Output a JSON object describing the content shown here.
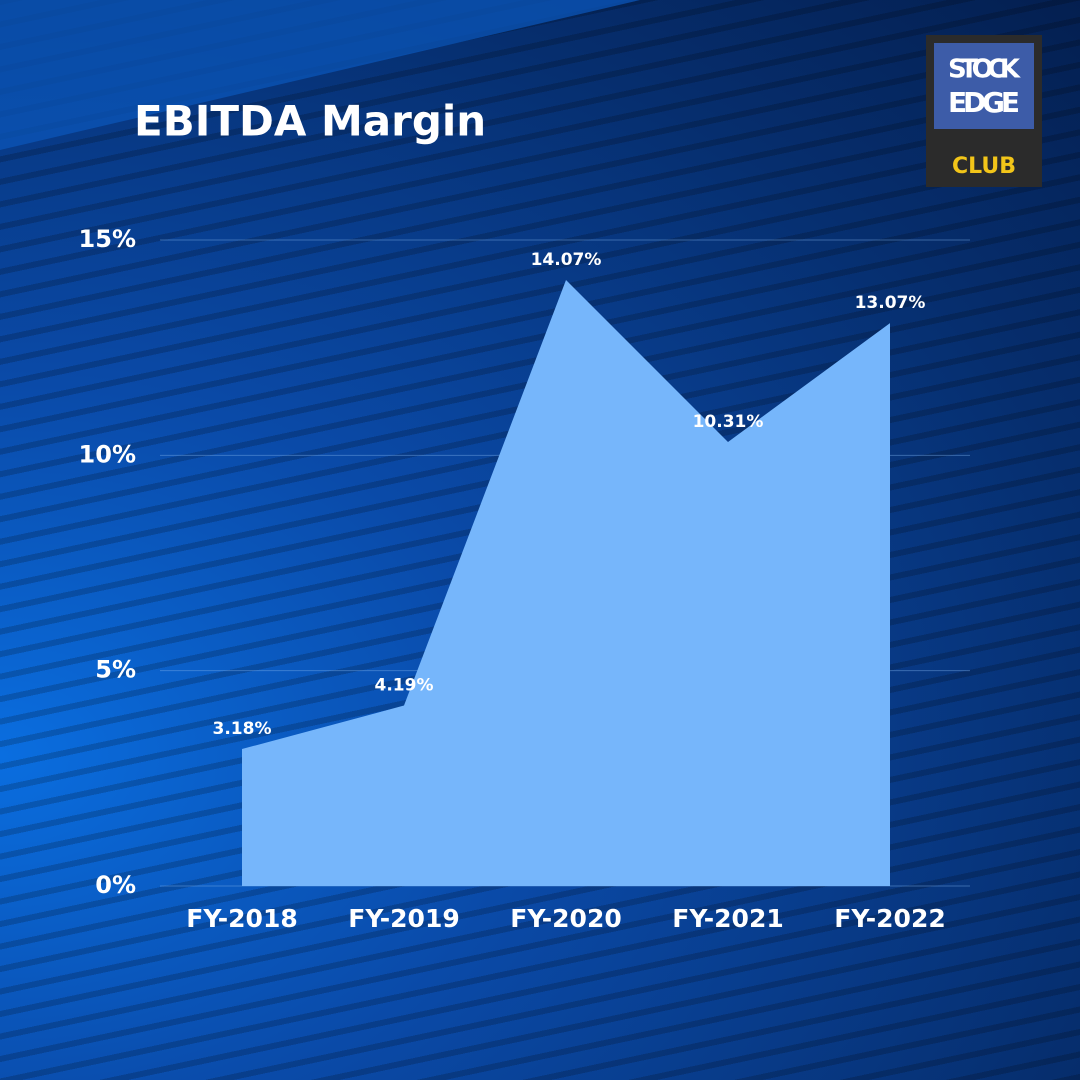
{
  "chart_data": {
    "type": "area",
    "title": "EBITDA Margin",
    "categories": [
      "FY-2018",
      "FY-2019",
      "FY-2020",
      "FY-2021",
      "FY-2022"
    ],
    "values": [
      3.18,
      4.19,
      14.07,
      10.31,
      13.07
    ],
    "value_labels": [
      "3.18%",
      "4.19%",
      "14.07%",
      "10.31%",
      "13.07%"
    ],
    "color": "#76b6fb",
    "ylim": [
      0,
      15
    ],
    "yticks": [
      {
        "value": 0,
        "label": "0%"
      },
      {
        "value": 5,
        "label": "5%"
      },
      {
        "value": 10,
        "label": "10%"
      },
      {
        "value": 15,
        "label": "15%"
      }
    ],
    "grid": true
  },
  "logo": {
    "line1": "STOCK",
    "line2": "EDGE",
    "badge": "CLUB"
  }
}
